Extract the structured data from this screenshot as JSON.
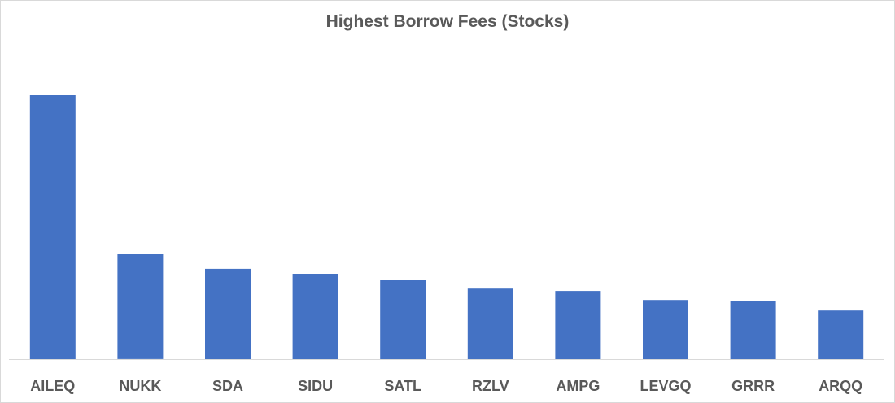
{
  "chart_data": {
    "type": "bar",
    "title": "Highest Borrow Fees (Stocks)",
    "xlabel": "",
    "ylabel": "",
    "categories": [
      "AILEQ",
      "NUKK",
      "SDA",
      "SIDU",
      "SATL",
      "RZLV",
      "AMPG",
      "LEVGQ",
      "GRRR",
      "ARQQ"
    ],
    "values": [
      100,
      39.8,
      34.2,
      32.3,
      29.9,
      26.7,
      25.8,
      22.4,
      22.1,
      18.4
    ],
    "ylim": [
      0,
      100
    ],
    "grid": false,
    "legend": "none",
    "bar_color": "#4472C4",
    "axis_color": "#d9d9d9"
  }
}
